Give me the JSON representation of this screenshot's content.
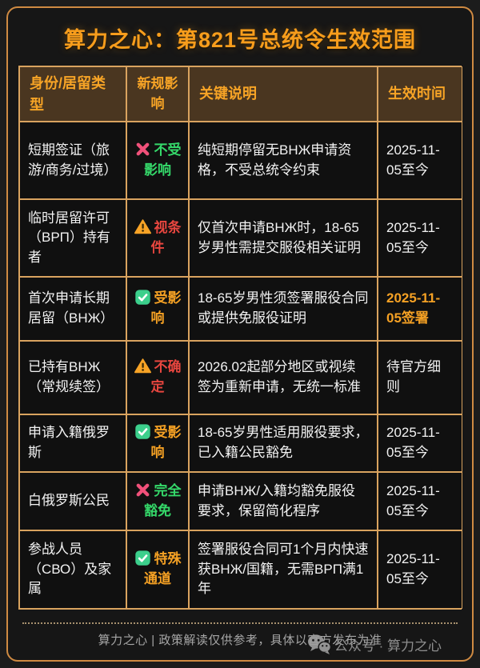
{
  "page": {
    "title": "算力之心：第821号总统令生效范围",
    "footer_note": "算力之心 | 政策解读仅供参考，具体以官方发布为准",
    "watermark": "公众号 · 算力之心"
  },
  "colors": {
    "accent_orange": "#f5a124",
    "title_orange": "#f79d1c",
    "border_tan": "#d9a35f",
    "frame_orange": "#cf8a42",
    "header_brown": "#4a3620",
    "cell_black": "#101010",
    "status_green": "#35d96a",
    "status_red": "#e8463f",
    "cross_pink": "#f0517a",
    "check_green": "#3ccf8c",
    "warning_yellow": "#f7a326",
    "footer_gray": "#a6a6a6"
  },
  "table": {
    "headers": [
      "身份/居留类型",
      "新规影响",
      "关键说明",
      "生效时间"
    ],
    "rows": [
      {
        "identity": "短期签证（旅游/商务/过境）",
        "icon": "cross-icon",
        "impact": "不受影响",
        "impact_color": "green",
        "note": "纯短期停留无ВНЖ申请资格，不受总统令约束",
        "time": "2025-11-05至今",
        "time_highlight": false
      },
      {
        "identity": "临时居留许可（ВРП）持有者",
        "icon": "warning-icon",
        "impact": "视条件",
        "impact_color": "red",
        "note": "仅首次申请ВНЖ时，18-65岁男性需提交服役相关证明",
        "time": "2025-11-05至今",
        "time_highlight": false
      },
      {
        "identity": "首次申请长期居留（ВНЖ）",
        "icon": "check-icon",
        "impact": "受影响",
        "impact_color": "orange",
        "note": "18-65岁男性须签署服役合同或提供免服役证明",
        "time": "2025-11-05签署",
        "time_highlight": true
      },
      {
        "identity": "已持有ВНЖ（常规续签）",
        "icon": "warning-icon",
        "impact": "不确定",
        "impact_color": "red",
        "note": "2026.02起部分地区或视续签为重新申请，无统一标准",
        "time": "待官方细则",
        "time_highlight": false
      },
      {
        "identity": "申请入籍俄罗斯",
        "icon": "check-icon",
        "impact": "受影响",
        "impact_color": "orange",
        "note": "18-65岁男性适用服役要求，已入籍公民豁免",
        "time": "2025-11-05至今",
        "time_highlight": false
      },
      {
        "identity": "白俄罗斯公民",
        "icon": "cross-icon",
        "impact": "完全豁免",
        "impact_color": "green",
        "note": "申请ВНЖ/入籍均豁免服役要求，保留简化程序",
        "time": "2025-11-05至今",
        "time_highlight": false
      },
      {
        "identity": "参战人员（СВО）及家属",
        "icon": "check-icon",
        "impact": "特殊通道",
        "impact_color": "orange",
        "note": "签署服役合同可1个月内快速获ВНЖ/国籍，无需ВРП满1年",
        "time": "2025-11-05至今",
        "time_highlight": false
      }
    ]
  }
}
